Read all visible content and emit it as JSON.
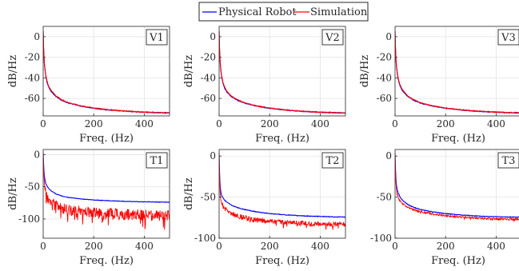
{
  "legend": {
    "entries": [
      {
        "label": "Physical Robot",
        "color": "#0000ff"
      },
      {
        "label": "Simulation",
        "color": "#ff0000"
      }
    ]
  },
  "chart_data": [
    {
      "type": "line",
      "panel": "V1",
      "xlabel": "Freq. (Hz)",
      "ylabel": "dB/Hz",
      "xlim": [
        0,
        500
      ],
      "ylim": [
        -77,
        10
      ],
      "xticks": [
        0,
        200,
        400
      ],
      "yticks": [
        0,
        -20,
        -40,
        -60
      ],
      "grid": true,
      "series": [
        {
          "name": "Physical Robot",
          "color": "#0000ff",
          "x": [
            0,
            2,
            5,
            10,
            15,
            20,
            30,
            50,
            75,
            100,
            150,
            200,
            250,
            300,
            350,
            400,
            450,
            500
          ],
          "y": [
            5,
            -15,
            -28,
            -38,
            -44,
            -48,
            -53,
            -58,
            -62,
            -64.5,
            -67.5,
            -69.5,
            -71,
            -72,
            -72.8,
            -73.4,
            -73.8,
            -74
          ]
        },
        {
          "name": "Simulation",
          "color": "#ff0000",
          "x": [
            0,
            2,
            5,
            10,
            15,
            20,
            30,
            50,
            75,
            100,
            150,
            200,
            250,
            300,
            350,
            400,
            450,
            500
          ],
          "y": [
            6,
            -14,
            -27,
            -37,
            -43,
            -47,
            -52,
            -57.5,
            -61.5,
            -64.2,
            -67.3,
            -69.3,
            -70.8,
            -71.9,
            -72.7,
            -73.3,
            -73.8,
            -74.1
          ]
        }
      ]
    },
    {
      "type": "line",
      "panel": "V2",
      "xlabel": "Freq. (Hz)",
      "ylabel": "dB/Hz",
      "xlim": [
        0,
        500
      ],
      "ylim": [
        -77,
        10
      ],
      "xticks": [
        0,
        200,
        400
      ],
      "yticks": [
        0,
        -20,
        -40,
        -60
      ],
      "grid": true,
      "series": [
        {
          "name": "Physical Robot",
          "color": "#0000ff",
          "x": [
            0,
            2,
            5,
            10,
            15,
            20,
            30,
            50,
            75,
            100,
            150,
            200,
            250,
            300,
            350,
            400,
            450,
            500
          ],
          "y": [
            5,
            -16,
            -29,
            -39,
            -45,
            -49,
            -54,
            -58.5,
            -62,
            -64.5,
            -67.5,
            -69.5,
            -71,
            -72,
            -72.8,
            -73.4,
            -73.8,
            -74
          ]
        },
        {
          "name": "Simulation",
          "color": "#ff0000",
          "x": [
            0,
            2,
            5,
            10,
            15,
            20,
            30,
            50,
            75,
            100,
            150,
            200,
            250,
            300,
            350,
            400,
            450,
            500
          ],
          "y": [
            6,
            -15,
            -28,
            -38,
            -44,
            -48,
            -53,
            -58,
            -61.7,
            -64.3,
            -67.4,
            -69.4,
            -70.9,
            -72,
            -72.8,
            -73.4,
            -73.9,
            -74.2
          ]
        }
      ]
    },
    {
      "type": "line",
      "panel": "V3",
      "xlabel": "Freq. (Hz)",
      "ylabel": "dB/Hz",
      "xlim": [
        0,
        500
      ],
      "ylim": [
        -77,
        10
      ],
      "xticks": [
        0,
        200,
        400
      ],
      "yticks": [
        0,
        -20,
        -40,
        -60
      ],
      "grid": true,
      "series": [
        {
          "name": "Physical Robot",
          "color": "#0000ff",
          "x": [
            0,
            2,
            5,
            10,
            15,
            20,
            30,
            50,
            75,
            100,
            150,
            200,
            250,
            300,
            350,
            400,
            450,
            500
          ],
          "y": [
            5,
            -15,
            -28,
            -38,
            -44,
            -48,
            -53,
            -58,
            -62,
            -64.5,
            -67.5,
            -69.5,
            -71,
            -72,
            -72.8,
            -73.4,
            -73.8,
            -74
          ]
        },
        {
          "name": "Simulation",
          "color": "#ff0000",
          "x": [
            0,
            2,
            5,
            10,
            15,
            20,
            30,
            50,
            75,
            100,
            150,
            200,
            250,
            300,
            350,
            400,
            450,
            500
          ],
          "y": [
            6,
            -14,
            -27,
            -37,
            -43,
            -47,
            -52,
            -57.5,
            -61.5,
            -64.2,
            -67.3,
            -69.3,
            -70.8,
            -71.9,
            -72.7,
            -73.3,
            -73.8,
            -74.1
          ]
        }
      ]
    },
    {
      "type": "line",
      "panel": "T1",
      "xlabel": "Freq. (Hz)",
      "ylabel": "dB/Hz",
      "xlim": [
        0,
        500
      ],
      "ylim": [
        -130,
        8
      ],
      "xticks": [
        0,
        200,
        400
      ],
      "yticks": [
        0,
        -50,
        -100
      ],
      "grid": true,
      "series": [
        {
          "name": "Physical Robot",
          "color": "#0000ff",
          "x": [
            0,
            2,
            5,
            10,
            20,
            30,
            50,
            75,
            100,
            150,
            200,
            250,
            300,
            350,
            400,
            450,
            500
          ],
          "y": [
            3,
            -20,
            -35,
            -45,
            -52,
            -56,
            -61,
            -64.5,
            -66.5,
            -69,
            -70.5,
            -71.5,
            -72.3,
            -72.9,
            -73.4,
            -73.7,
            -74
          ]
        },
        {
          "name": "Simulation",
          "color": "#ff0000",
          "x": [
            0,
            2,
            5,
            10,
            20,
            30,
            50,
            75,
            100,
            150,
            200,
            250,
            300,
            350,
            400,
            450,
            500
          ],
          "y": [
            4,
            -30,
            -48,
            -60,
            -68,
            -73,
            -79,
            -83,
            -86,
            -89,
            -91,
            -92,
            -93,
            -93.5,
            -94,
            -94.5,
            -95
          ]
        }
      ]
    },
    {
      "type": "line",
      "panel": "T2",
      "xlabel": "Freq. (Hz)",
      "ylabel": "dB/Hz",
      "xlim": [
        0,
        500
      ],
      "ylim": [
        -100,
        8
      ],
      "xticks": [
        0,
        200,
        400
      ],
      "yticks": [
        0,
        -50,
        -100
      ],
      "grid": true,
      "series": [
        {
          "name": "Physical Robot",
          "color": "#0000ff",
          "x": [
            0,
            2,
            5,
            10,
            20,
            30,
            50,
            75,
            100,
            150,
            200,
            250,
            300,
            350,
            400,
            450,
            500
          ],
          "y": [
            3,
            -25,
            -40,
            -48,
            -53,
            -56,
            -60,
            -63,
            -65,
            -68,
            -70,
            -71.3,
            -72.3,
            -73,
            -73.5,
            -74,
            -74.3
          ]
        },
        {
          "name": "Simulation",
          "color": "#ff0000",
          "x": [
            0,
            2,
            5,
            10,
            20,
            30,
            50,
            75,
            100,
            150,
            200,
            250,
            300,
            350,
            400,
            450,
            500
          ],
          "y": [
            4,
            -30,
            -48,
            -57,
            -63,
            -66,
            -70,
            -73,
            -75,
            -78,
            -79.5,
            -80.5,
            -81.3,
            -82,
            -82.5,
            -83,
            -83.3
          ]
        }
      ]
    },
    {
      "type": "line",
      "panel": "T3",
      "xlabel": "Freq. (Hz)",
      "ylabel": "",
      "xlim": [
        0,
        500
      ],
      "ylim": [
        -100,
        8
      ],
      "xticks": [
        0,
        200,
        400
      ],
      "yticks": [
        0,
        -50,
        -100
      ],
      "grid": true,
      "series": [
        {
          "name": "Physical Robot",
          "color": "#0000ff",
          "x": [
            0,
            2,
            5,
            10,
            20,
            30,
            50,
            75,
            100,
            150,
            200,
            250,
            300,
            350,
            400,
            450,
            500
          ],
          "y": [
            3,
            -20,
            -35,
            -43,
            -50,
            -54,
            -59,
            -62.5,
            -65,
            -68,
            -70,
            -71.5,
            -72.5,
            -73.3,
            -73.8,
            -74.2,
            -74.5
          ]
        },
        {
          "name": "Simulation",
          "color": "#ff0000",
          "x": [
            0,
            2,
            5,
            10,
            20,
            30,
            50,
            75,
            100,
            150,
            200,
            250,
            300,
            350,
            400,
            450,
            500
          ],
          "y": [
            4,
            -25,
            -40,
            -48,
            -55,
            -58,
            -62.5,
            -65.5,
            -67.5,
            -70.5,
            -72.5,
            -74,
            -75,
            -75.8,
            -76.3,
            -76.8,
            -77.2
          ]
        }
      ]
    }
  ]
}
